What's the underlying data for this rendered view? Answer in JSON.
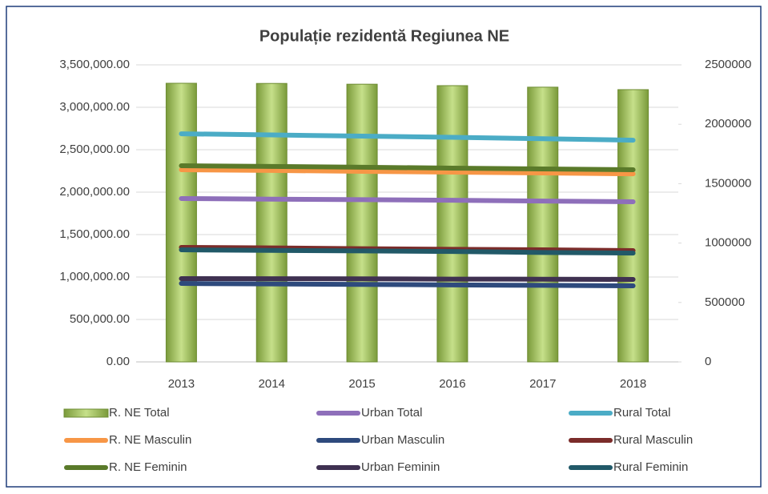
{
  "chart_data": {
    "type": "bar",
    "title": "Populație rezidentă Regiunea NE",
    "categories": [
      "2013",
      "2014",
      "2015",
      "2016",
      "2017",
      "2018"
    ],
    "ylim": [
      0,
      3500000
    ],
    "yticks": [
      {
        "value": 0,
        "label": "0.00"
      },
      {
        "value": 500000,
        "label": "500,000.00"
      },
      {
        "value": 1000000,
        "label": "1,000,000.00"
      },
      {
        "value": 1500000,
        "label": "1,500,000.00"
      },
      {
        "value": 2000000,
        "label": "2,000,000.00"
      },
      {
        "value": 2500000,
        "label": "2,500,000.00"
      },
      {
        "value": 3000000,
        "label": "3,000,000.00"
      },
      {
        "value": 3500000,
        "label": "3,500,000.00"
      }
    ],
    "y2lim": [
      0,
      2500000
    ],
    "y2ticks": [
      0,
      500000,
      1000000,
      1500000,
      2000000,
      2500000
    ],
    "grid": true,
    "legend": "bottom",
    "series": [
      {
        "name": "R. NE Total",
        "type": "bar",
        "color": "#9bbb59",
        "values": [
          3283000,
          3281000,
          3272000,
          3255000,
          3237000,
          3208000
        ]
      },
      {
        "name": "Urban Total",
        "type": "line",
        "axis": "y2",
        "color": "#8e6fba",
        "values": [
          1375000,
          1370000,
          1365000,
          1360000,
          1354000,
          1348000
        ]
      },
      {
        "name": "Rural Total",
        "type": "line",
        "axis": "y2",
        "color": "#4bacc6",
        "values": [
          1920000,
          1910000,
          1900000,
          1890000,
          1878000,
          1866000
        ]
      },
      {
        "name": "R. NE Masculin",
        "type": "line",
        "axis": "y2",
        "color": "#f79646",
        "values": [
          1617000,
          1611000,
          1604000,
          1597000,
          1590000,
          1583000
        ]
      },
      {
        "name": "Urban Masculin",
        "type": "line",
        "axis": "y2",
        "color": "#2e4a7d",
        "values": [
          660000,
          656000,
          652000,
          648000,
          644000,
          640000
        ]
      },
      {
        "name": "Rural Masculin",
        "type": "line",
        "axis": "y2",
        "color": "#7b2c2a",
        "values": [
          964000,
          959000,
          953000,
          948000,
          943000,
          937000
        ]
      },
      {
        "name": "R. NE Feminin",
        "type": "line",
        "axis": "y2",
        "color": "#5a7a2a",
        "values": [
          1651000,
          1645000,
          1638000,
          1631000,
          1624000,
          1617000
        ]
      },
      {
        "name": "Urban Feminin",
        "type": "line",
        "axis": "y2",
        "color": "#3f3151",
        "values": [
          701000,
          700000,
          699000,
          697000,
          696000,
          694000
        ]
      },
      {
        "name": "Rural Feminin",
        "type": "line",
        "axis": "y2",
        "color": "#215968",
        "values": [
          943000,
          938000,
          934000,
          929000,
          921000,
          916000
        ]
      }
    ]
  }
}
